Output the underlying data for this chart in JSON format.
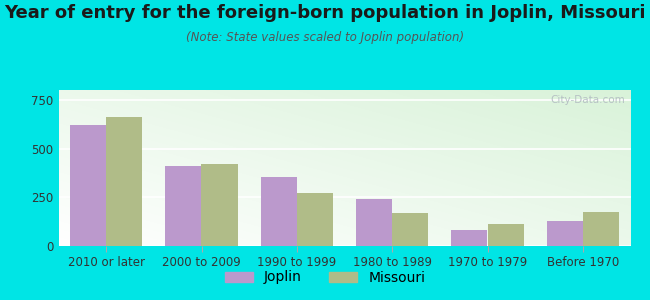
{
  "title": "Year of entry for the foreign-born population in Joplin, Missouri",
  "subtitle": "(Note: State values scaled to Joplin population)",
  "categories": [
    "2010 or later",
    "2000 to 2009",
    "1990 to 1999",
    "1980 to 1989",
    "1970 to 1979",
    "Before 1970"
  ],
  "joplin_values": [
    620,
    410,
    355,
    243,
    82,
    128
  ],
  "missouri_values": [
    663,
    418,
    270,
    168,
    113,
    173
  ],
  "joplin_color": "#bb99cc",
  "missouri_color": "#b0bc88",
  "background_color": "#00e5e5",
  "ylim": [
    0,
    800
  ],
  "yticks": [
    0,
    250,
    500,
    750
  ],
  "bar_width": 0.38,
  "title_fontsize": 13,
  "subtitle_fontsize": 8.5,
  "legend_fontsize": 10,
  "tick_fontsize": 8.5,
  "watermark_text": "City-Data.com"
}
